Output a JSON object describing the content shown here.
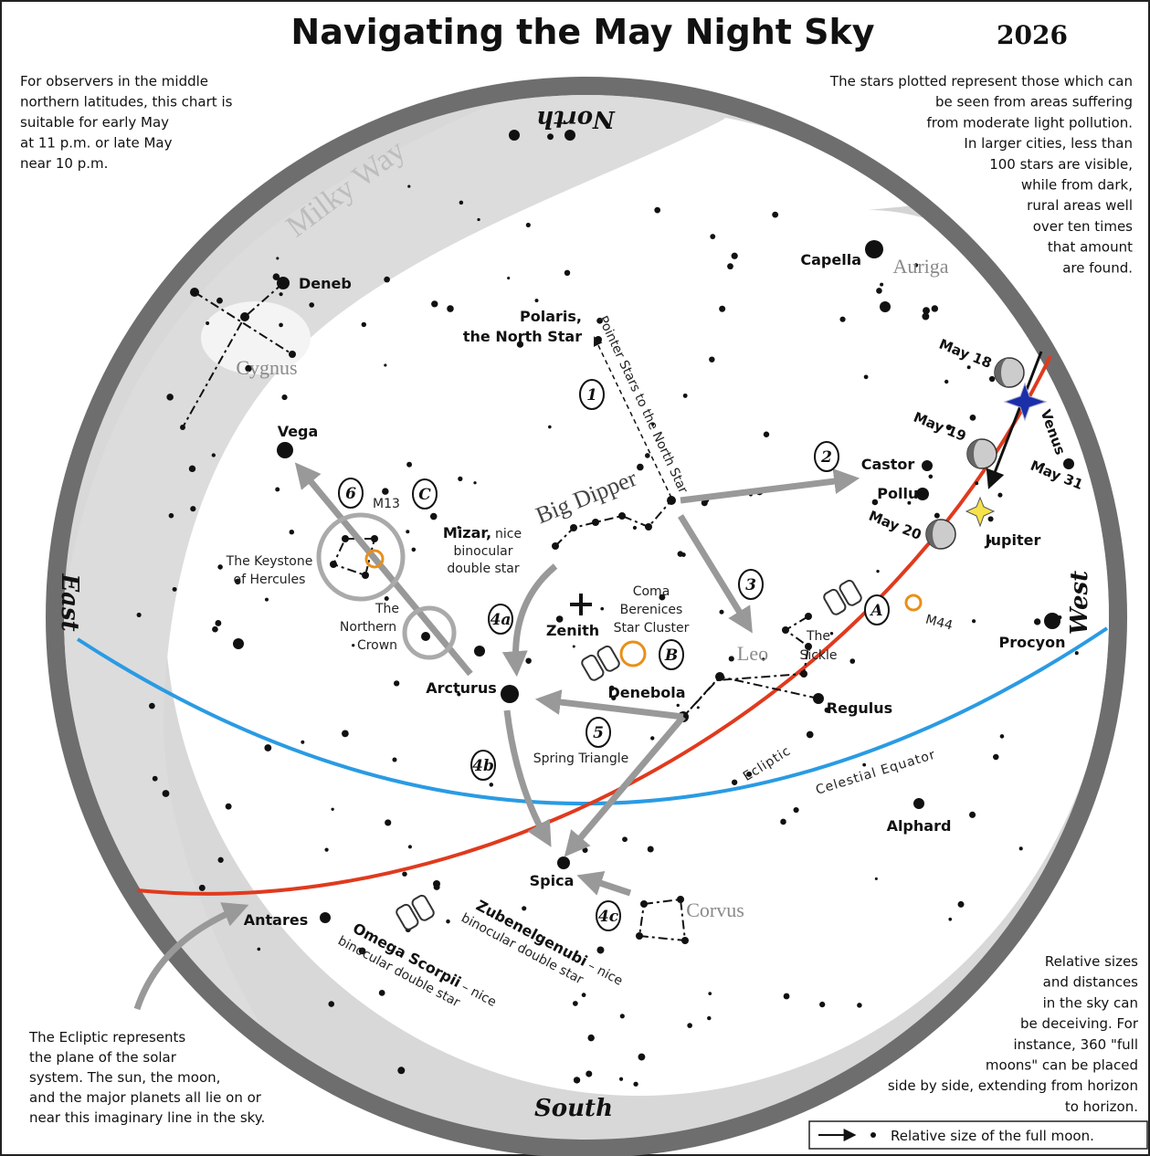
{
  "header": {
    "title": "Navigating the May Night Sky",
    "year": "2026"
  },
  "notes": {
    "top_left": [
      "For observers in the middle",
      "northern latitudes, this chart is",
      "suitable for early May",
      "at 11 p.m. or late May",
      "near 10 p.m."
    ],
    "top_right": [
      "The stars plotted represent those which can",
      "be seen from areas suffering",
      "from moderate light pollution.",
      "In larger cities, less than",
      "100 stars are visible,",
      "while from dark,",
      "rural areas well",
      "over ten times",
      "that amount",
      "are found."
    ],
    "bottom_left": [
      "The Ecliptic represents",
      "the plane of the solar",
      "system. The sun, the moon,",
      "and the major planets all lie on or",
      "near this imaginary line in the sky."
    ],
    "bottom_right": [
      "Relative sizes",
      "and distances",
      "in the sky can",
      "be deceiving. For",
      "instance, 360 \"full",
      "moons\" can be placed",
      "side by side, extending from horizon",
      "to horizon."
    ]
  },
  "legend": "Relative size of the full moon.",
  "directions": {
    "north": "North",
    "south": "South",
    "east": "East",
    "west": "West"
  },
  "labels": {
    "deneb": "Deneb",
    "cygnus": "Cygnus",
    "milky_way": "Milky Way",
    "vega": "Vega",
    "polaris_1": "Polaris,",
    "polaris_2": "the North Star",
    "pointer": "Pointer Stars to the North Star",
    "capella": "Capella",
    "auriga": "Auriga",
    "may18": "May 18",
    "may19": "May 19",
    "may20": "May 20",
    "may31": "May 31",
    "venus": "Venus",
    "castor": "Castor",
    "pollux": "Pollux",
    "jupiter": "Jupiter",
    "big_dipper": "Big Dipper",
    "mizar_2": "binocular",
    "mizar_3": "double star",
    "m13": "M13",
    "keystone_1": "The Keystone",
    "keystone_2": "of Hercules",
    "crown_1": "The",
    "crown_2": "Northern",
    "crown_3": "Crown",
    "coma_1": "Coma",
    "coma_2": "Berenices",
    "coma_3": "Star Cluster",
    "zenith": "Zenith",
    "leo": "Leo",
    "sickle_1": "The",
    "sickle_2": "Sickle",
    "m44": "M44",
    "procyon": "Procyon",
    "arcturus": "Arcturus",
    "denebola": "Denebola",
    "regulus": "Regulus",
    "spring": "Spring Triangle",
    "ecliptic": "Ecliptic",
    "equator": "Celestial Equator",
    "alphard": "Alphard",
    "spica": "Spica",
    "corvus": "Corvus",
    "antares": "Antares"
  },
  "mixed_labels": {
    "mizar": {
      "name": "Mizar,",
      "note": "nice"
    },
    "omega": {
      "name": "Omega Scorpii",
      "note": "– nice",
      "line2": "binocular double star"
    },
    "zuben": {
      "name": "Zubenelgenubi",
      "note": "– nice",
      "line2": "binocular double star"
    }
  },
  "markers": {
    "m1": "1",
    "m2": "2",
    "m3": "3",
    "m4a": "4a",
    "m4b": "4b",
    "m4c": "4c",
    "m5": "5",
    "m6": "6",
    "mA": "A",
    "mB": "B",
    "mC": "C"
  }
}
